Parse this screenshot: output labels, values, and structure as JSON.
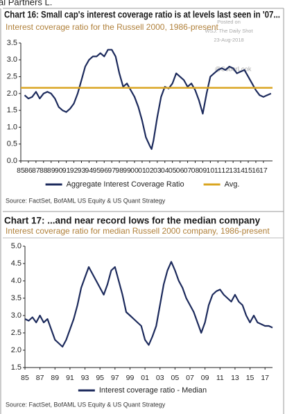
{
  "header": {
    "clipped_text": "al Partners L."
  },
  "watermark": {
    "lines": [
      "Posted on",
      "WSJ: The Daily Shot",
      "23-Aug-2018"
    ],
    "handle": "@SoberLook"
  },
  "chart_data": [
    {
      "type": "line",
      "title": "Chart 16: Small cap's interest coverage ratio is at levels last seen in '07...",
      "subtitle": "Interest coverage ratio for the Russell 2000, 1986-present",
      "source": "Source: FactSet, BofAML US Equity & US Quant Strategy",
      "x": [
        1985.5,
        1986,
        1986.5,
        1987,
        1987.5,
        1988,
        1988.5,
        1989,
        1989.5,
        1990,
        1990.5,
        1991,
        1991.5,
        1992,
        1992.5,
        1993,
        1993.5,
        1994,
        1994.5,
        1995,
        1995.5,
        1996,
        1996.5,
        1997,
        1997.5,
        1998,
        1998.5,
        1999,
        1999.5,
        2000,
        2000.5,
        2001,
        2001.5,
        2002,
        2002.25,
        2002.5,
        2003,
        2003.5,
        2004,
        2004.5,
        2005,
        2005.5,
        2006,
        2006.5,
        2007,
        2007.5,
        2008,
        2008.5,
        2009,
        2009.5,
        2010,
        2010.5,
        2011,
        2011.5,
        2012,
        2012.5,
        2013,
        2013.5,
        2014,
        2014.5,
        2015,
        2015.5,
        2016,
        2016.5,
        2017,
        2017.5,
        2018
      ],
      "series": [
        {
          "name": "Aggregate Interest Coverage Ratio",
          "color": "#1c2a5c",
          "values": [
            1.95,
            1.85,
            1.9,
            2.05,
            1.85,
            2.0,
            2.05,
            2.0,
            1.85,
            1.6,
            1.5,
            1.45,
            1.55,
            1.7,
            2.0,
            2.4,
            2.8,
            3.0,
            3.1,
            3.1,
            3.2,
            3.1,
            3.3,
            3.3,
            3.1,
            2.6,
            2.2,
            2.3,
            2.1,
            1.9,
            1.6,
            1.2,
            0.7,
            0.45,
            0.35,
            0.6,
            1.3,
            1.9,
            2.2,
            2.15,
            2.3,
            2.6,
            2.5,
            2.4,
            2.2,
            2.3,
            2.1,
            1.8,
            1.4,
            2.0,
            2.5,
            2.6,
            2.7,
            2.75,
            2.7,
            2.8,
            2.75,
            2.6,
            2.65,
            2.7,
            2.5,
            2.3,
            2.1,
            1.95,
            1.9,
            1.95,
            2.0
          ]
        }
      ],
      "reference_line": {
        "name": "Avg.",
        "value": 2.17,
        "color": "#d9a520"
      },
      "xlim": [
        1985,
        2018.2
      ],
      "xticks": [
        {
          "value": 1985,
          "label": "85"
        },
        {
          "value": 1986,
          "label": "86"
        },
        {
          "value": 1987,
          "label": "87"
        },
        {
          "value": 1988,
          "label": "88"
        },
        {
          "value": 1989,
          "label": "89"
        },
        {
          "value": 1990,
          "label": "90"
        },
        {
          "value": 1991,
          "label": "91"
        },
        {
          "value": 1992,
          "label": "92"
        },
        {
          "value": 1993,
          "label": "93"
        },
        {
          "value": 1994,
          "label": "94"
        },
        {
          "value": 1995,
          "label": "95"
        },
        {
          "value": 1996,
          "label": "96"
        },
        {
          "value": 1997,
          "label": "97"
        },
        {
          "value": 1998,
          "label": "98"
        },
        {
          "value": 1999,
          "label": "99"
        },
        {
          "value": 2000,
          "label": "00"
        },
        {
          "value": 2001,
          "label": "01"
        },
        {
          "value": 2002,
          "label": "02"
        },
        {
          "value": 2003,
          "label": "03"
        },
        {
          "value": 2004,
          "label": "04"
        },
        {
          "value": 2005,
          "label": "05"
        },
        {
          "value": 2006,
          "label": "06"
        },
        {
          "value": 2007,
          "label": "07"
        },
        {
          "value": 2008,
          "label": "08"
        },
        {
          "value": 2009,
          "label": "09"
        },
        {
          "value": 2010,
          "label": "10"
        },
        {
          "value": 2011,
          "label": "11"
        },
        {
          "value": 2012,
          "label": "12"
        },
        {
          "value": 2013,
          "label": "13"
        },
        {
          "value": 2014,
          "label": "14"
        },
        {
          "value": 2015,
          "label": "15"
        },
        {
          "value": 2016,
          "label": "16"
        },
        {
          "value": 2017,
          "label": "17"
        }
      ],
      "ylim": [
        0,
        3.5
      ],
      "yticks": [
        {
          "value": 0,
          "label": "0.0"
        },
        0.5,
        {
          "value": 1,
          "label": "1.0"
        },
        1.5,
        {
          "value": 2,
          "label": "2.0"
        },
        2.5,
        {
          "value": 3,
          "label": "3.0"
        },
        3.5
      ],
      "grid": false
    },
    {
      "type": "line",
      "title": "Chart 17: ...and near record lows for the median company",
      "subtitle": "Interest coverage ratio for median Russell 2000 company, 1986-present",
      "source": "Source: FactSet, BofAML US Equity & US Quant Strategy",
      "x": [
        1985,
        1985.5,
        1986,
        1986.5,
        1987,
        1987.5,
        1988,
        1988.5,
        1989,
        1989.5,
        1990,
        1990.5,
        1991,
        1991.5,
        1992,
        1992.5,
        1993,
        1993.5,
        1994,
        1994.5,
        1995,
        1995.5,
        1996,
        1996.5,
        1997,
        1997.5,
        1998,
        1998.5,
        1999,
        1999.5,
        2000,
        2000.5,
        2001,
        2001.5,
        2002,
        2002.5,
        2003,
        2003.5,
        2004,
        2004.5,
        2005,
        2005.5,
        2006,
        2006.5,
        2007,
        2007.5,
        2008,
        2008.5,
        2009,
        2009.5,
        2010,
        2010.5,
        2011,
        2011.5,
        2012,
        2012.5,
        2013,
        2013.5,
        2014,
        2014.5,
        2015,
        2015.5,
        2016,
        2016.5,
        2017,
        2017.5,
        2018
      ],
      "series": [
        {
          "name": "Interest coverage ratio - Median",
          "color": "#1c2a5c",
          "values": [
            2.9,
            2.85,
            2.95,
            2.8,
            3.0,
            2.8,
            2.9,
            2.6,
            2.3,
            2.2,
            2.1,
            2.3,
            2.6,
            2.9,
            3.3,
            3.8,
            4.1,
            4.4,
            4.2,
            4.0,
            3.8,
            3.6,
            3.9,
            4.3,
            4.4,
            4.0,
            3.6,
            3.1,
            3.0,
            2.9,
            2.8,
            2.7,
            2.3,
            2.15,
            2.4,
            2.7,
            3.3,
            3.9,
            4.3,
            4.55,
            4.3,
            4.0,
            3.8,
            3.5,
            3.3,
            3.1,
            2.8,
            2.5,
            2.8,
            3.3,
            3.6,
            3.7,
            3.75,
            3.6,
            3.5,
            3.4,
            3.6,
            3.4,
            3.3,
            3.0,
            2.8,
            3.0,
            2.8,
            2.75,
            2.7,
            2.7,
            2.65
          ]
        }
      ],
      "xlim": [
        1985,
        2018
      ],
      "xticks": [
        {
          "value": 1985,
          "label": "85"
        },
        {
          "value": 1987,
          "label": "87"
        },
        {
          "value": 1989,
          "label": "89"
        },
        {
          "value": 1991,
          "label": "91"
        },
        {
          "value": 1993,
          "label": "93"
        },
        {
          "value": 1995,
          "label": "95"
        },
        {
          "value": 1997,
          "label": "97"
        },
        {
          "value": 1999,
          "label": "99"
        },
        {
          "value": 2001,
          "label": "01"
        },
        {
          "value": 2003,
          "label": "03"
        },
        {
          "value": 2005,
          "label": "05"
        },
        {
          "value": 2007,
          "label": "07"
        },
        {
          "value": 2009,
          "label": "09"
        },
        {
          "value": 2011,
          "label": "11"
        },
        {
          "value": 2013,
          "label": "13"
        },
        {
          "value": 2015,
          "label": "15"
        },
        {
          "value": 2017,
          "label": "17"
        }
      ],
      "ylim": [
        1.5,
        5
      ],
      "yticks": [
        1.5,
        {
          "value": 2,
          "label": "2.0"
        },
        2.5,
        {
          "value": 3,
          "label": "3.0"
        },
        3.5,
        {
          "value": 4,
          "label": "4.0"
        },
        4.5,
        {
          "value": 5,
          "label": "5.0"
        }
      ],
      "grid": false
    }
  ]
}
